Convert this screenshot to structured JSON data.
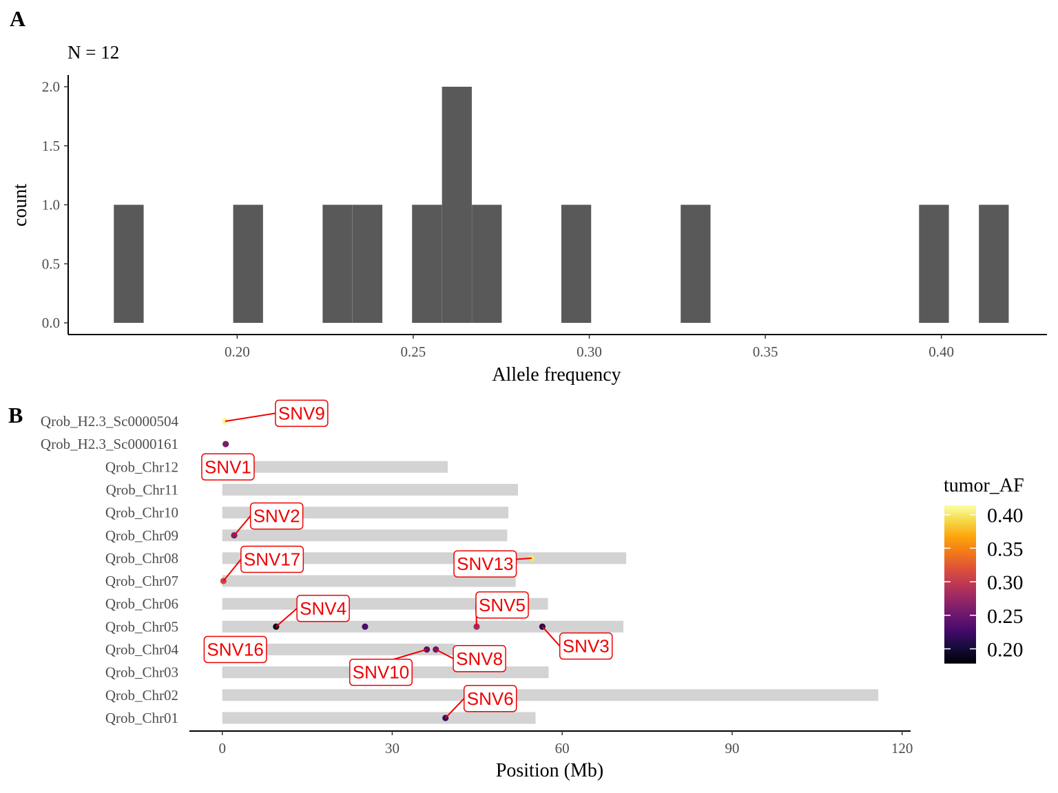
{
  "panels": {
    "a": {
      "letter": "A",
      "title": "N = 12"
    },
    "b": {
      "letter": "B"
    }
  },
  "chart_data": [
    {
      "type": "bar",
      "title": "N = 12",
      "xlabel": "Allele frequency",
      "ylabel": "count",
      "xlim": [
        0.152,
        0.43
      ],
      "ylim": [
        0,
        2.1
      ],
      "xticks": [
        "0.20",
        "0.25",
        "0.30",
        "0.35",
        "0.40"
      ],
      "xtick_values": [
        0.2,
        0.25,
        0.3,
        0.35,
        0.4
      ],
      "yticks": [
        "0.0",
        "0.5",
        "1.0",
        "1.5",
        "2.0"
      ],
      "ytick_values": [
        0,
        0.5,
        1.0,
        1.5,
        2.0
      ],
      "bin_width": 0.00847,
      "bins": [
        {
          "x": 0.1692,
          "count": 1
        },
        {
          "x": 0.2031,
          "count": 1
        },
        {
          "x": 0.2285,
          "count": 1
        },
        {
          "x": 0.237,
          "count": 1
        },
        {
          "x": 0.2539,
          "count": 1
        },
        {
          "x": 0.2624,
          "count": 2
        },
        {
          "x": 0.2709,
          "count": 1
        },
        {
          "x": 0.2963,
          "count": 1
        },
        {
          "x": 0.3302,
          "count": 1
        },
        {
          "x": 0.3979,
          "count": 1
        },
        {
          "x": 0.4149,
          "count": 1
        }
      ],
      "bar_color": "#595959",
      "grid": false
    },
    {
      "type": "scatter",
      "xlabel": "Position (Mb)",
      "xlim": [
        -5.8,
        121.5
      ],
      "xticks": [
        "0",
        "30",
        "60",
        "90",
        "120"
      ],
      "xtick_values": [
        0,
        30,
        60,
        90,
        120
      ],
      "chromosomes": [
        {
          "name": "Qrob_H2.3_Sc0000504",
          "length": null
        },
        {
          "name": "Qrob_H2.3_Sc0000161",
          "length": null
        },
        {
          "name": "Qrob_Chr12",
          "length": 39.8
        },
        {
          "name": "Qrob_Chr11",
          "length": 52.2
        },
        {
          "name": "Qrob_Chr10",
          "length": 50.5
        },
        {
          "name": "Qrob_Chr09",
          "length": 50.3
        },
        {
          "name": "Qrob_Chr08",
          "length": 71.3
        },
        {
          "name": "Qrob_Chr07",
          "length": 51.8
        },
        {
          "name": "Qrob_Chr06",
          "length": 57.5
        },
        {
          "name": "Qrob_Chr05",
          "length": 70.8
        },
        {
          "name": "Qrob_Chr04",
          "length": 41.0
        },
        {
          "name": "Qrob_Chr03",
          "length": 57.6
        },
        {
          "name": "Qrob_Chr02",
          "length": 115.8
        },
        {
          "name": "Qrob_Chr01",
          "length": 55.3
        }
      ],
      "points": [
        {
          "label": "SNV9",
          "chrom": "Qrob_H2.3_Sc0000504",
          "pos": 0.5,
          "af": 0.41,
          "label_x": 14.0,
          "label_dy": 0.35
        },
        {
          "label": "",
          "chrom": "Qrob_H2.3_Sc0000161",
          "pos": 0.6,
          "af": 0.26
        },
        {
          "label": "SNV1",
          "chrom": "Qrob_Chr12",
          "pos": 0.3,
          "af": 0.25,
          "label_x": 1.0,
          "label_dy": 0.0
        },
        {
          "label": "SNV2",
          "chrom": "Qrob_Chr09",
          "pos": 2.1,
          "af": 0.26,
          "label_x": 9.6,
          "label_dy": 0.85
        },
        {
          "label": "SNV17",
          "chrom": "Qrob_Chr07",
          "pos": 0.2,
          "af": 0.31,
          "label_x": 8.8,
          "label_dy": 0.95
        },
        {
          "label": "SNV13",
          "chrom": "Qrob_Chr08",
          "pos": 54.6,
          "af": 0.4,
          "label_x": 46.4,
          "label_dy": -0.25
        },
        {
          "label": "SNV4",
          "chrom": "Qrob_Chr05",
          "pos": 9.5,
          "af": 0.19,
          "label_x": 17.8,
          "label_dy": 0.8
        },
        {
          "label": "",
          "chrom": "Qrob_Chr05",
          "pos": 25.2,
          "af": 0.23
        },
        {
          "label": "SNV5",
          "chrom": "Qrob_Chr05",
          "pos": 44.9,
          "af": 0.28,
          "label_x": 49.4,
          "label_dy": 0.95
        },
        {
          "label": "SNV3",
          "chrom": "Qrob_Chr05",
          "pos": 56.5,
          "af": 0.21,
          "label_x": 64.2,
          "label_dy": -0.85
        },
        {
          "label": "SNV16",
          "chrom": "Qrob_Chr04",
          "pos": 2.3,
          "af": 0.24,
          "label_x": 2.3,
          "label_dy": 0.0
        },
        {
          "label": "SNV10",
          "chrom": "Qrob_Chr04",
          "pos": 36.1,
          "af": 0.24,
          "label_x": 28.0,
          "label_dy": -1.0
        },
        {
          "label": "SNV8",
          "chrom": "Qrob_Chr04",
          "pos": 37.7,
          "af": 0.25,
          "label_x": 45.4,
          "label_dy": -0.4
        },
        {
          "label": "SNV6",
          "chrom": "Qrob_Chr01",
          "pos": 39.4,
          "af": 0.22,
          "label_x": 47.3,
          "label_dy": 0.85
        }
      ],
      "chrom_bar_color": "#d3d3d3",
      "label_color": "#ee0000",
      "colorscale": "inferno",
      "legend": {
        "title": "tumor_AF",
        "range": [
          0.178,
          0.414
        ],
        "ticks": [
          "0.40",
          "0.35",
          "0.30",
          "0.25",
          "0.20"
        ],
        "tick_values": [
          0.4,
          0.35,
          0.3,
          0.25,
          0.2
        ],
        "placement": "right"
      },
      "grid": false
    }
  ]
}
